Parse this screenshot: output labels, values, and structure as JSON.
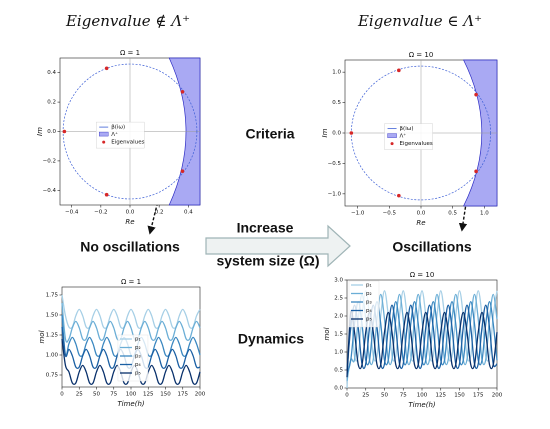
{
  "headers": [
    "Eigenvalue ∉ Λ⁺",
    "Eigenvalue ∈ Λ⁺"
  ],
  "labels": {
    "criteria": "Criteria",
    "dynamics": "Dynamics",
    "no_oscillations": "No oscillations",
    "oscillations": "Oscillations",
    "increase": "Increase",
    "system_size": "system size (Ω)"
  },
  "chart_data": [
    {
      "type": "scatter",
      "title": "Ω = 1",
      "x_label": "Re",
      "y_label": "Im",
      "xlim": [
        -0.48,
        0.48
      ],
      "ylim": [
        -0.5,
        0.5
      ],
      "xticks": [
        {
          "value": -0.4,
          "label": "−0.4"
        },
        {
          "value": -0.2,
          "label": "−0.2"
        },
        {
          "value": 0,
          "label": "0.0"
        },
        0.2,
        0.4
      ],
      "yticks": [
        {
          "value": -0.4,
          "label": "−0.4"
        },
        {
          "value": -0.2,
          "label": "−0.2"
        },
        {
          "value": 0,
          "label": "0.0"
        },
        0.2,
        0.4
      ],
      "series": [
        {
          "name": "β(iω)",
          "color": "#3d5fd6"
        },
        {
          "name": "Λ⁺",
          "color": "#a9a9f3"
        },
        {
          "name": "Eigenvalues",
          "color": "#d62728",
          "x": [
            -0.45,
            -0.16,
            0.36,
            0.36,
            -0.16
          ],
          "y": [
            0,
            0.43,
            0.27,
            -0.27,
            -0.43
          ]
        }
      ]
    },
    {
      "type": "scatter",
      "title": "Ω = 10",
      "x_label": "Re",
      "y_label": "Im",
      "xlim": [
        -1.2,
        1.2
      ],
      "ylim": [
        -1.2,
        1.2
      ],
      "xticks": [
        {
          "value": -1,
          "label": "−1.0"
        },
        {
          "value": -0.5,
          "label": "−0.5"
        },
        {
          "value": 0,
          "label": "0.0"
        },
        0.5,
        {
          "value": 1,
          "label": "1.0"
        }
      ],
      "yticks": [
        {
          "value": -1,
          "label": "−1.0"
        },
        {
          "value": -0.5,
          "label": "−0.5"
        },
        {
          "value": 0,
          "label": "0.0"
        },
        0.5,
        {
          "value": 1,
          "label": "1.0"
        }
      ],
      "series": [
        {
          "name": "β(iω)",
          "color": "#3d5fd6"
        },
        {
          "name": "Λ⁺",
          "color": "#a9a9f3"
        },
        {
          "name": "Eigenvalues",
          "color": "#d62728",
          "x": [
            -1.1,
            -0.35,
            0.87,
            0.87,
            -0.35
          ],
          "y": [
            0,
            1.03,
            0.63,
            -0.63,
            -1.03
          ]
        }
      ]
    },
    {
      "type": "line",
      "title": "Ω = 1",
      "x_label": "Time(h)",
      "y_label": "mol",
      "legend": "lower center",
      "xlim": [
        0,
        200
      ],
      "ylim": [
        0.6,
        1.85
      ],
      "xticks": [
        0,
        25,
        50,
        75,
        100,
        125,
        150,
        175,
        200
      ],
      "yticks": [
        0.75,
        {
          "value": 1,
          "label": "1.00"
        },
        1.25,
        {
          "value": 1.5,
          "label": "1.50"
        },
        1.75
      ],
      "x": [
        0,
        5,
        10,
        15,
        20,
        25,
        30,
        35,
        40,
        45,
        50,
        55,
        60,
        65,
        70,
        75,
        80,
        85,
        90,
        95,
        100,
        105,
        110,
        115,
        120,
        125,
        130,
        135,
        140,
        145,
        150,
        155,
        160,
        165,
        170,
        175,
        180,
        185,
        190,
        195,
        200
      ],
      "series": [
        {
          "name": "p₁",
          "color": "#a6cfe6",
          "values": [
            1.75,
            1.49,
            1.35,
            1.35,
            1.49,
            1.57,
            1.49,
            1.35,
            1.35,
            1.49,
            1.57,
            1.49,
            1.35,
            1.35,
            1.49,
            1.57,
            1.49,
            1.35,
            1.35,
            1.49,
            1.57,
            1.49,
            1.35,
            1.35,
            1.49,
            1.57,
            1.49,
            1.35,
            1.35,
            1.49,
            1.57,
            1.49,
            1.35,
            1.35,
            1.49,
            1.57,
            1.49,
            1.35,
            1.35,
            1.49,
            1.57
          ]
        },
        {
          "name": "p₂",
          "color": "#6baed6",
          "values": [
            1.65,
            1.2,
            1.2,
            1.34,
            1.42,
            1.34,
            1.2,
            1.2,
            1.34,
            1.42,
            1.34,
            1.2,
            1.2,
            1.34,
            1.42,
            1.34,
            1.2,
            1.2,
            1.34,
            1.42,
            1.34,
            1.2,
            1.2,
            1.34,
            1.42,
            1.34,
            1.2,
            1.2,
            1.34,
            1.42,
            1.34,
            1.2,
            1.2,
            1.34,
            1.42,
            1.34,
            1.2,
            1.2,
            1.34,
            1.42,
            1.34
          ]
        },
        {
          "name": "p₃",
          "color": "#3a87c0",
          "values": [
            1.5,
            1.0,
            1.14,
            1.22,
            1.14,
            1.0,
            1.0,
            1.14,
            1.22,
            1.14,
            1.0,
            1.0,
            1.14,
            1.22,
            1.14,
            1.0,
            1.0,
            1.14,
            1.22,
            1.14,
            1.0,
            1.0,
            1.14,
            1.22,
            1.14,
            1.0,
            1.0,
            1.14,
            1.22,
            1.14,
            1.0,
            1.0,
            1.14,
            1.22,
            1.14,
            1.0,
            1.0,
            1.14,
            1.22,
            1.14,
            1.0
          ]
        },
        {
          "name": "p₄",
          "color": "#1a5fa3",
          "values": [
            1.35,
            0.99,
            1.07,
            0.99,
            0.85,
            0.85,
            0.99,
            1.07,
            0.99,
            0.85,
            0.85,
            0.99,
            1.07,
            0.99,
            0.85,
            0.85,
            0.99,
            1.07,
            0.99,
            0.85,
            0.85,
            0.99,
            1.07,
            0.99,
            0.85,
            0.85,
            0.99,
            1.07,
            0.99,
            0.85,
            0.85,
            0.99,
            1.07,
            0.99,
            0.85,
            0.85,
            0.99,
            1.07,
            0.99,
            0.85,
            0.85
          ]
        },
        {
          "name": "p₅",
          "color": "#08306b",
          "values": [
            1.2,
            0.87,
            0.79,
            0.65,
            0.65,
            0.79,
            0.87,
            0.79,
            0.65,
            0.65,
            0.79,
            0.87,
            0.79,
            0.65,
            0.65,
            0.79,
            0.87,
            0.79,
            0.65,
            0.65,
            0.79,
            0.87,
            0.79,
            0.65,
            0.65,
            0.79,
            0.87,
            0.79,
            0.65,
            0.65,
            0.79,
            0.87,
            0.79,
            0.65,
            0.65,
            0.79,
            0.87,
            0.79,
            0.65,
            0.65,
            0.79
          ]
        }
      ]
    },
    {
      "type": "line",
      "title": "Ω = 10",
      "x_label": "Time(h)",
      "y_label": "mol",
      "legend": "upper left",
      "xlim": [
        0,
        200
      ],
      "ylim": [
        0,
        3
      ],
      "xticks": [
        0,
        25,
        50,
        75,
        100,
        125,
        150,
        175,
        200
      ],
      "yticks": [
        {
          "value": 0,
          "label": "0.0"
        },
        0.5,
        {
          "value": 1,
          "label": "1.0"
        },
        1.5,
        {
          "value": 2,
          "label": "2.0"
        },
        2.5,
        {
          "value": 3,
          "label": "3.0"
        }
      ],
      "x": [
        0,
        5,
        10,
        15,
        20,
        25,
        30,
        35,
        40,
        45,
        50,
        55,
        60,
        65,
        70,
        75,
        80,
        85,
        90,
        95,
        100,
        105,
        110,
        115,
        120,
        125,
        130,
        135,
        140,
        145,
        150,
        155,
        160,
        165,
        170,
        175,
        180,
        185,
        190,
        195,
        200
      ],
      "series": [
        {
          "name": "p₁",
          "color": "#a6cfe6",
          "values": [
            0.0,
            2.01,
            0.89,
            0.89,
            2.01,
            2.7,
            2.01,
            0.89,
            0.89,
            2.01,
            2.7,
            2.01,
            0.89,
            0.89,
            2.01,
            2.7,
            2.01,
            0.89,
            0.89,
            2.01,
            2.7,
            2.01,
            0.89,
            0.89,
            2.01,
            2.7,
            2.01,
            0.89,
            0.89,
            2.01,
            2.7,
            2.01,
            0.89,
            0.89,
            2.01,
            2.7,
            2.01,
            0.89,
            0.89,
            2.01,
            2.7
          ]
        },
        {
          "name": "p₂",
          "color": "#6baed6",
          "values": [
            0.2,
            0.79,
            0.79,
            1.91,
            2.6,
            1.91,
            0.79,
            0.79,
            1.91,
            2.6,
            1.91,
            0.79,
            0.79,
            1.91,
            2.6,
            1.91,
            0.79,
            0.79,
            1.91,
            2.6,
            1.91,
            0.79,
            0.79,
            1.91,
            2.6,
            1.91,
            0.79,
            0.79,
            1.91,
            2.6,
            1.91,
            0.79,
            0.79,
            1.91,
            2.6,
            1.91,
            0.79,
            0.79,
            1.91,
            2.6,
            1.91
          ]
        },
        {
          "name": "p₃",
          "color": "#3a87c0",
          "values": [
            0.4,
            0.77,
            1.78,
            2.4,
            1.78,
            0.77,
            0.77,
            1.78,
            2.4,
            1.78,
            0.77,
            0.77,
            1.78,
            2.4,
            1.78,
            0.77,
            0.77,
            1.78,
            2.4,
            1.78,
            0.77,
            0.77,
            1.78,
            2.4,
            1.78,
            0.77,
            0.77,
            1.78,
            2.4,
            1.78,
            0.77,
            0.77,
            1.78,
            2.4,
            1.78,
            0.77,
            0.77,
            1.78,
            2.4,
            1.78,
            0.77
          ]
        },
        {
          "name": "p₄",
          "color": "#1a5fa3",
          "values": [
            0.5,
            1.68,
            2.3,
            1.68,
            0.67,
            0.67,
            1.68,
            2.3,
            1.68,
            0.67,
            0.67,
            1.68,
            2.3,
            1.68,
            0.67,
            0.67,
            1.68,
            2.3,
            1.68,
            0.67,
            0.67,
            1.68,
            2.3,
            1.68,
            0.67,
            0.67,
            1.68,
            2.3,
            1.68,
            0.67,
            0.67,
            1.68,
            2.3,
            1.68,
            0.67,
            0.67,
            1.68,
            2.3,
            1.68,
            0.67,
            0.67
          ]
        },
        {
          "name": "p₅",
          "color": "#08306b",
          "values": [
            0.3,
            2.1,
            1.55,
            0.65,
            0.65,
            1.55,
            2.1,
            1.55,
            0.65,
            0.65,
            1.55,
            2.1,
            1.55,
            0.65,
            0.65,
            1.55,
            2.1,
            1.55,
            0.65,
            0.65,
            1.55,
            2.1,
            1.55,
            0.65,
            0.65,
            1.55,
            2.1,
            1.55,
            0.65,
            0.65,
            1.55,
            2.1,
            1.55,
            0.65,
            0.65,
            1.55,
            2.1,
            1.55,
            0.65,
            0.65,
            1.55
          ]
        }
      ]
    }
  ]
}
